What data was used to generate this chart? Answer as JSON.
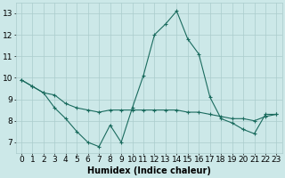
{
  "x": [
    0,
    1,
    2,
    3,
    4,
    5,
    6,
    7,
    8,
    9,
    10,
    11,
    12,
    13,
    14,
    15,
    16,
    17,
    18,
    19,
    20,
    21,
    22,
    23
  ],
  "line1_y": [
    9.9,
    9.6,
    9.3,
    8.6,
    8.1,
    7.5,
    7.0,
    6.8,
    7.8,
    7.0,
    8.6,
    10.1,
    12.0,
    12.5,
    13.1,
    11.8,
    11.1,
    9.1,
    8.1,
    7.9,
    7.6,
    7.4,
    8.3,
    8.3
  ],
  "line2_y": [
    9.9,
    9.6,
    9.3,
    9.2,
    8.8,
    8.6,
    8.5,
    8.4,
    8.5,
    8.5,
    8.5,
    8.5,
    8.5,
    8.5,
    8.5,
    8.4,
    8.4,
    8.3,
    8.2,
    8.1,
    8.1,
    8.0,
    8.2,
    8.3
  ],
  "background_color": "#cce8e8",
  "line_color": "#1a6b5e",
  "grid_color": "#aacccc",
  "xlabel": "Humidex (Indice chaleur)",
  "xlabel_fontsize": 7,
  "xlim": [
    -0.5,
    23.5
  ],
  "ylim": [
    6.5,
    13.5
  ],
  "xticks": [
    0,
    1,
    2,
    3,
    4,
    5,
    6,
    7,
    8,
    9,
    10,
    11,
    12,
    13,
    14,
    15,
    16,
    17,
    18,
    19,
    20,
    21,
    22,
    23
  ],
  "yticks": [
    7,
    8,
    9,
    10,
    11,
    12,
    13
  ],
  "tick_fontsize": 6.5
}
